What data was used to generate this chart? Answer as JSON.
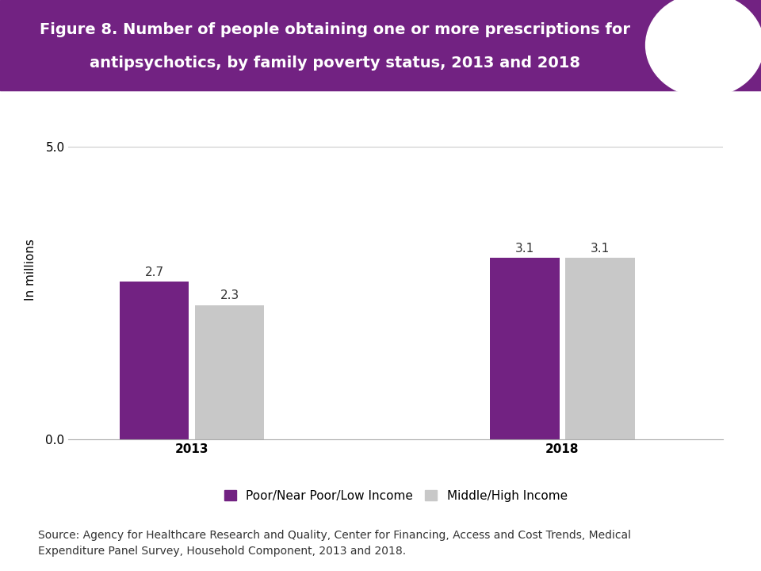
{
  "title_line1": "Figure 8. Number of people obtaining one or more prescriptions for",
  "title_line2": "antipsychotics, by family poverty status, 2013 and 2018",
  "header_bg_color": "#722282",
  "bar_groups": [
    "2013",
    "2018"
  ],
  "series": [
    {
      "label": "Poor/Near Poor/Low Income",
      "values": [
        2.7,
        3.1
      ],
      "color": "#722282"
    },
    {
      "label": "Middle/High Income",
      "values": [
        2.3,
        3.1
      ],
      "color": "#C8C8C8"
    }
  ],
  "ylabel": "In millions",
  "ylim": [
    0,
    5.8
  ],
  "yticks": [
    0.0,
    5.0
  ],
  "ytick_labels": [
    "0.0",
    "5.0"
  ],
  "bar_width": 0.28,
  "group_positions": [
    1.0,
    2.5
  ],
  "source_text": "Source: Agency for Healthcare Research and Quality, Center for Financing, Access and Cost Trends, Medical\nExpenditure Panel Survey, Household Component, 2013 and 2018.",
  "title_fontsize": 14,
  "label_fontsize": 11,
  "tick_fontsize": 11,
  "bar_label_fontsize": 11,
  "source_fontsize": 10
}
